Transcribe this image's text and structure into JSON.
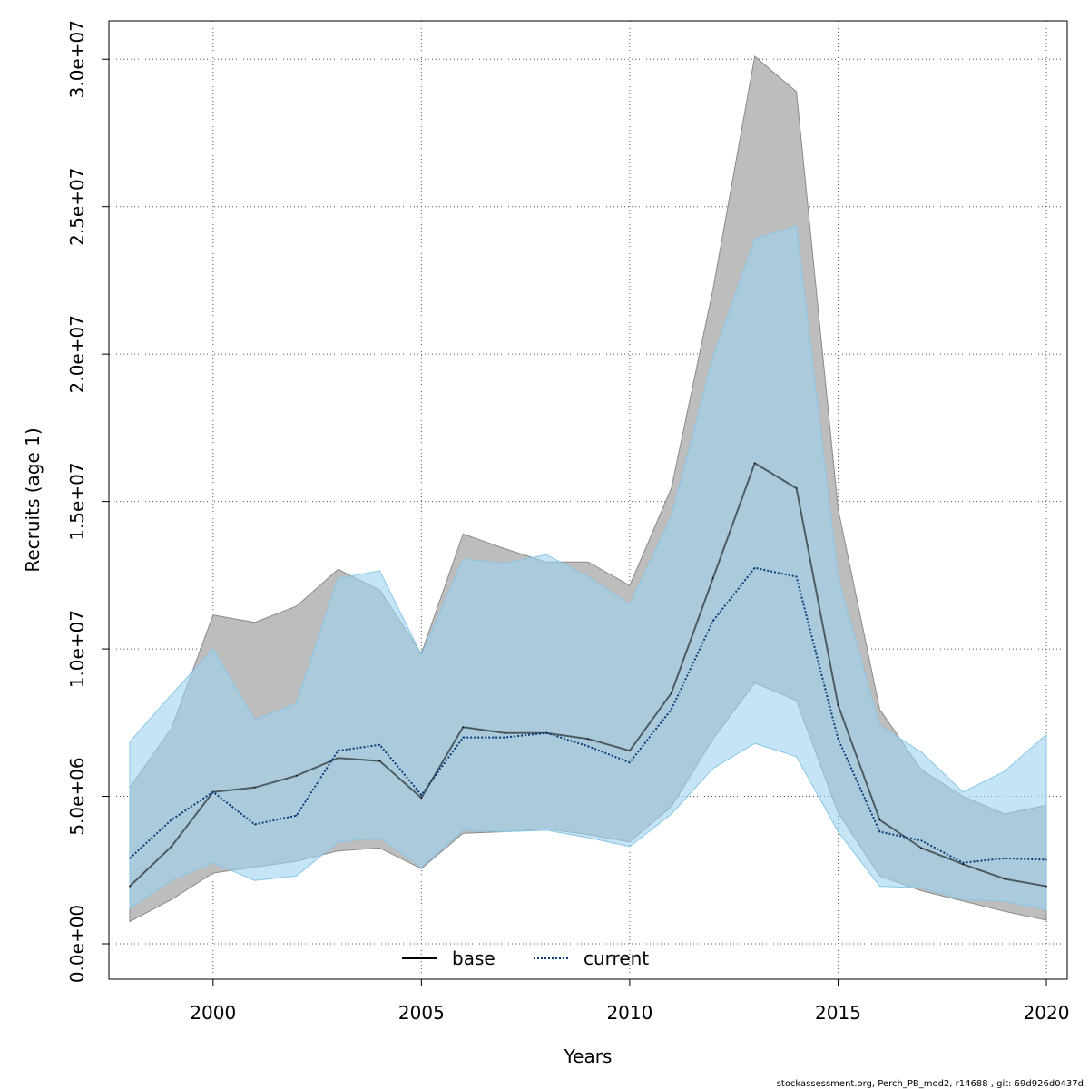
{
  "chart_data": {
    "type": "area",
    "xlabel": "Years",
    "ylabel": "Recruits (age 1)",
    "xlim": [
      1997.5,
      2020.5
    ],
    "ylim": [
      -1200000,
      31300000
    ],
    "x_ticks": [
      2000,
      2005,
      2010,
      2015,
      2020
    ],
    "x_tick_labels": [
      "2000",
      "2005",
      "2010",
      "2015",
      "2020"
    ],
    "y_ticks": [
      0,
      5000000,
      10000000,
      15000000,
      20000000,
      25000000,
      30000000
    ],
    "y_tick_labels": [
      "0.0e+00",
      "5.0e+06",
      "1.0e+07",
      "1.5e+07",
      "2.0e+07",
      "2.5e+07",
      "3.0e+07"
    ],
    "grid": true,
    "legend_position": "bottom-center",
    "x": [
      1998,
      1999,
      2000,
      2001,
      2002,
      2003,
      2004,
      2005,
      2006,
      2007,
      2008,
      2009,
      2010,
      2011,
      2012,
      2013,
      2014,
      2015,
      2016,
      2017,
      2018,
      2019,
      2020
    ],
    "series": [
      {
        "name": "base",
        "color": "#000000",
        "line_style": "solid",
        "band_color": "#bdbdbd",
        "values": [
          1950000,
          3300000,
          5150000,
          5300000,
          5700000,
          6300000,
          6200000,
          4950000,
          7350000,
          7150000,
          7150000,
          6950000,
          6550000,
          8500000,
          12400000,
          16300000,
          15450000,
          8100000,
          4200000,
          3250000,
          2700000,
          2200000,
          1950000
        ],
        "lower": [
          750000,
          1500000,
          2400000,
          2600000,
          2800000,
          3150000,
          3250000,
          2550000,
          3750000,
          3800000,
          3900000,
          3700000,
          3450000,
          4650000,
          6950000,
          8850000,
          8250000,
          4450000,
          2300000,
          1800000,
          1450000,
          1100000,
          800000
        ],
        "upper": [
          5300000,
          7300000,
          11150000,
          10900000,
          11450000,
          12700000,
          12000000,
          9850000,
          13900000,
          13400000,
          12950000,
          12950000,
          12150000,
          15450000,
          22200000,
          30100000,
          28900000,
          14750000,
          7950000,
          5900000,
          5000000,
          4400000,
          4700000
        ]
      },
      {
        "name": "current",
        "color": "#0b3c7a",
        "line_style": "dotted",
        "band_color": "#9fd3f0",
        "values": [
          2900000,
          4200000,
          5150000,
          4050000,
          4350000,
          6550000,
          6750000,
          5050000,
          7000000,
          7000000,
          7150000,
          6700000,
          6150000,
          7950000,
          10950000,
          12750000,
          12450000,
          6950000,
          3800000,
          3500000,
          2750000,
          2900000,
          2850000
        ],
        "lower": [
          1200000,
          2150000,
          2750000,
          2150000,
          2300000,
          3450000,
          3600000,
          2600000,
          3850000,
          3800000,
          3850000,
          3600000,
          3300000,
          4400000,
          5950000,
          6800000,
          6350000,
          3800000,
          1950000,
          1900000,
          1500000,
          1450000,
          1150000
        ],
        "upper": [
          6850000,
          8450000,
          10000000,
          7600000,
          8150000,
          12400000,
          12650000,
          9800000,
          13050000,
          12900000,
          13200000,
          12450000,
          11500000,
          14500000,
          19900000,
          23900000,
          24350000,
          12400000,
          7400000,
          6500000,
          5150000,
          5850000,
          7100000
        ]
      }
    ],
    "legend": [
      {
        "label": "base"
      },
      {
        "label": "current"
      }
    ],
    "footnote": "stockassessment.org, Perch_PB_mod2, r14688 , git: 69d926d0437d"
  }
}
